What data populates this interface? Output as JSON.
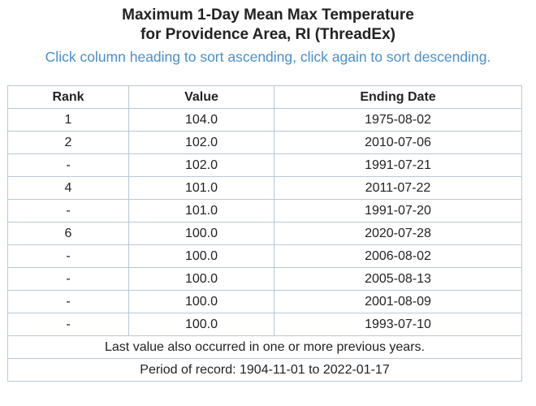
{
  "title_line1": "Maximum 1-Day Mean Max Temperature",
  "title_line2": "for Providence Area, RI (ThreadEx)",
  "instructions": "Click column heading to sort ascending, click again to sort descending.",
  "table": {
    "headers": [
      "Rank",
      "Value",
      "Ending Date"
    ],
    "rows": [
      {
        "rank": "1",
        "value": "104.0",
        "date": "1975-08-02"
      },
      {
        "rank": "2",
        "value": "102.0",
        "date": "2010-07-06"
      },
      {
        "rank": "-",
        "value": "102.0",
        "date": "1991-07-21"
      },
      {
        "rank": "4",
        "value": "101.0",
        "date": "2011-07-22"
      },
      {
        "rank": "-",
        "value": "101.0",
        "date": "1991-07-20"
      },
      {
        "rank": "6",
        "value": "100.0",
        "date": "2020-07-28"
      },
      {
        "rank": "-",
        "value": "100.0",
        "date": "2006-08-02"
      },
      {
        "rank": "-",
        "value": "100.0",
        "date": "2005-08-13"
      },
      {
        "rank": "-",
        "value": "100.0",
        "date": "2001-08-09"
      },
      {
        "rank": "-",
        "value": "100.0",
        "date": "1993-07-10"
      }
    ],
    "footnote": "Last value also occurred in one or more previous years.",
    "period": "Period of record: 1904-11-01 to 2022-01-17"
  }
}
